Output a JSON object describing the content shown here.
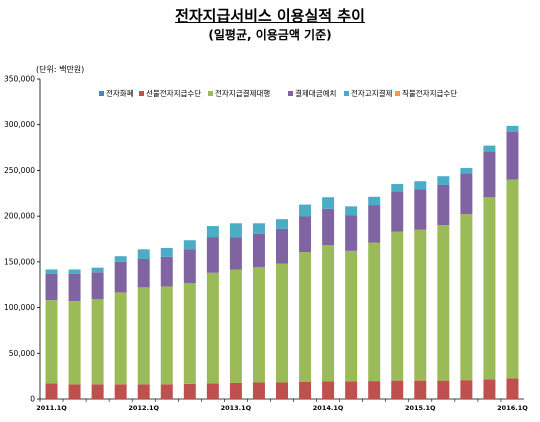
{
  "title": "전자지급서비스 이용실적 추이",
  "subtitle": "(일평균, 이용금액 기준)",
  "unit_label": "(단위: 백만원)",
  "chart_data": {
    "type": "bar",
    "stacked": true,
    "title": "전자지급서비스 이용실적 추이",
    "subtitle": "(일평균, 이용금액 기준)",
    "ylim": [
      0,
      350000
    ],
    "yticks": [
      0,
      50000,
      100000,
      150000,
      200000,
      250000,
      300000,
      350000
    ],
    "ytick_labels": [
      "0",
      "50,000",
      "100,000",
      "150,000",
      "200,000",
      "250,000",
      "300,000",
      "350,000"
    ],
    "categories": [
      "2011.1Q",
      "2011.2Q",
      "2011.3Q",
      "2011.4Q",
      "2012.1Q",
      "2012.2Q",
      "2012.3Q",
      "2012.4Q",
      "2013.1Q",
      "2013.2Q",
      "2013.3Q",
      "2013.4Q",
      "2014.1Q",
      "2014.2Q",
      "2014.3Q",
      "2014.4Q",
      "2015.1Q",
      "2015.2Q",
      "2015.3Q",
      "2015.4Q",
      "2016.1Q"
    ],
    "x_tick_labels": [
      "2011.1Q",
      "",
      "",
      "",
      "2012.1Q",
      "",
      "",
      "",
      "2013.1Q",
      "",
      "",
      "",
      "2014.1Q",
      "",
      "",
      "",
      "2015.1Q",
      "",
      "",
      "",
      "2016.1Q"
    ],
    "legend_position": "top-left",
    "grid": false,
    "series": [
      {
        "name": "직불전자지급수단",
        "color": "#f79646",
        "values": [
          100,
          100,
          100,
          100,
          100,
          100,
          100,
          100,
          100,
          100,
          100,
          100,
          100,
          100,
          100,
          100,
          100,
          100,
          100,
          100,
          100
        ]
      },
      {
        "name": "선불전자지급수단",
        "color": "#c0504d",
        "values": [
          17000,
          16000,
          16000,
          16000,
          16000,
          16000,
          16500,
          17000,
          17500,
          18000,
          18000,
          18500,
          19000,
          19000,
          19500,
          20000,
          20000,
          20000,
          20500,
          21500,
          22500
        ]
      },
      {
        "name": "전자지급결제대행",
        "color": "#9bbb59",
        "values": [
          91000,
          91000,
          93000,
          100500,
          106000,
          107000,
          110000,
          121000,
          124000,
          126000,
          130000,
          142000,
          149000,
          143000,
          151500,
          163000,
          165000,
          170000,
          181500,
          199000,
          217500
        ]
      },
      {
        "name": "결제대금예치",
        "color": "#8064a2",
        "values": [
          29000,
          30000,
          29500,
          33500,
          31000,
          32500,
          37000,
          39000,
          35000,
          36500,
          38000,
          39000,
          40000,
          39000,
          41000,
          44000,
          44000,
          44000,
          44500,
          50000,
          52000
        ]
      },
      {
        "name": "전자고지결제",
        "color": "#4bacc6",
        "values": [
          4500,
          4500,
          5000,
          6000,
          10500,
          9500,
          10000,
          12000,
          15500,
          11500,
          10500,
          13000,
          12500,
          9500,
          9000,
          8000,
          9000,
          9500,
          6000,
          6500,
          6500
        ]
      },
      {
        "name": "전자화폐",
        "color": "#4f81bd",
        "values": [
          100,
          100,
          100,
          100,
          100,
          100,
          100,
          100,
          100,
          100,
          100,
          100,
          100,
          100,
          100,
          100,
          100,
          100,
          100,
          100,
          100
        ]
      }
    ],
    "legend_order": [
      "전자화폐",
      "선불전자지급수단",
      "전자지급결제대행",
      "결제대금예치",
      "전자고지결제",
      "직불전자지급수단"
    ]
  }
}
